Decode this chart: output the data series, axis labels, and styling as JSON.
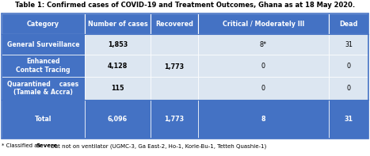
{
  "title": "Table 1: Confirmed cases of COVID-19 and Treatment Outcomes, Ghana as at 18 May 2020.",
  "footnote_plain1": "* Classified as ",
  "footnote_bold": "Severe",
  "footnote_plain2": " but not on ventilator (UGMC-3, Ga East-2, Ho-1, Korle-Bu-1, Tetteh Quashie-1)",
  "header_bg": "#4472C4",
  "header_text_color": "#FFFFFF",
  "cat_bg": "#4472C4",
  "row_bg_light": "#DCE6F1",
  "total_bg": "#4472C4",
  "total_text_color": "#FFFFFF",
  "border_color": "#4472C4",
  "col_headers": [
    "Category",
    "Number of cases",
    "Recovered",
    "Critical / Moderately Ill",
    "Dead"
  ],
  "rows": [
    {
      "cells": [
        "General Surveillance",
        "1,853",
        "",
        "8*",
        "31"
      ],
      "cat_bold": true,
      "data_bold": [
        true,
        false,
        false,
        false
      ]
    },
    {
      "cells": [
        "Enhanced\nContact Tracing",
        "4,128",
        "1,773",
        "0",
        "0"
      ],
      "cat_bold": true,
      "data_bold": [
        true,
        true,
        false,
        false
      ]
    },
    {
      "cells": [
        "Quarantined    cases\n(Tamale & Accra)",
        "115",
        "",
        "0",
        "0"
      ],
      "cat_bold": true,
      "data_bold": [
        true,
        false,
        false,
        false
      ]
    },
    {
      "cells": [
        "Total",
        "6,096",
        "1,773",
        "8",
        "31"
      ],
      "cat_bold": true,
      "data_bold": [
        true,
        true,
        true,
        true
      ],
      "is_total": true
    }
  ],
  "title_fontsize": 6.0,
  "header_fontsize": 5.8,
  "cell_fontsize": 5.8,
  "footnote_fontsize": 5.0
}
